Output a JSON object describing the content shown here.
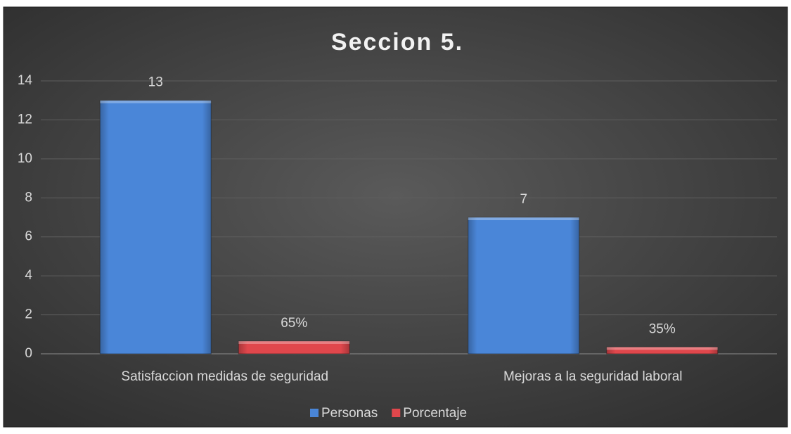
{
  "chart_data": {
    "type": "bar",
    "title": "Seccion 5.",
    "categories": [
      "Satisfaccion medidas de seguridad",
      "Mejoras a la seguridad laboral"
    ],
    "series": [
      {
        "name": "Personas",
        "color": "#4a86d8",
        "values": [
          13,
          7
        ]
      },
      {
        "name": "Porcentaje",
        "color": "#e0474c",
        "values": [
          0.65,
          0.35
        ],
        "value_labels": [
          "65%",
          "35%"
        ]
      }
    ],
    "ylim": [
      0,
      14
    ],
    "yticks": [
      0,
      2,
      4,
      6,
      8,
      10,
      12,
      14
    ],
    "grid": true,
    "legend": "bottom"
  }
}
